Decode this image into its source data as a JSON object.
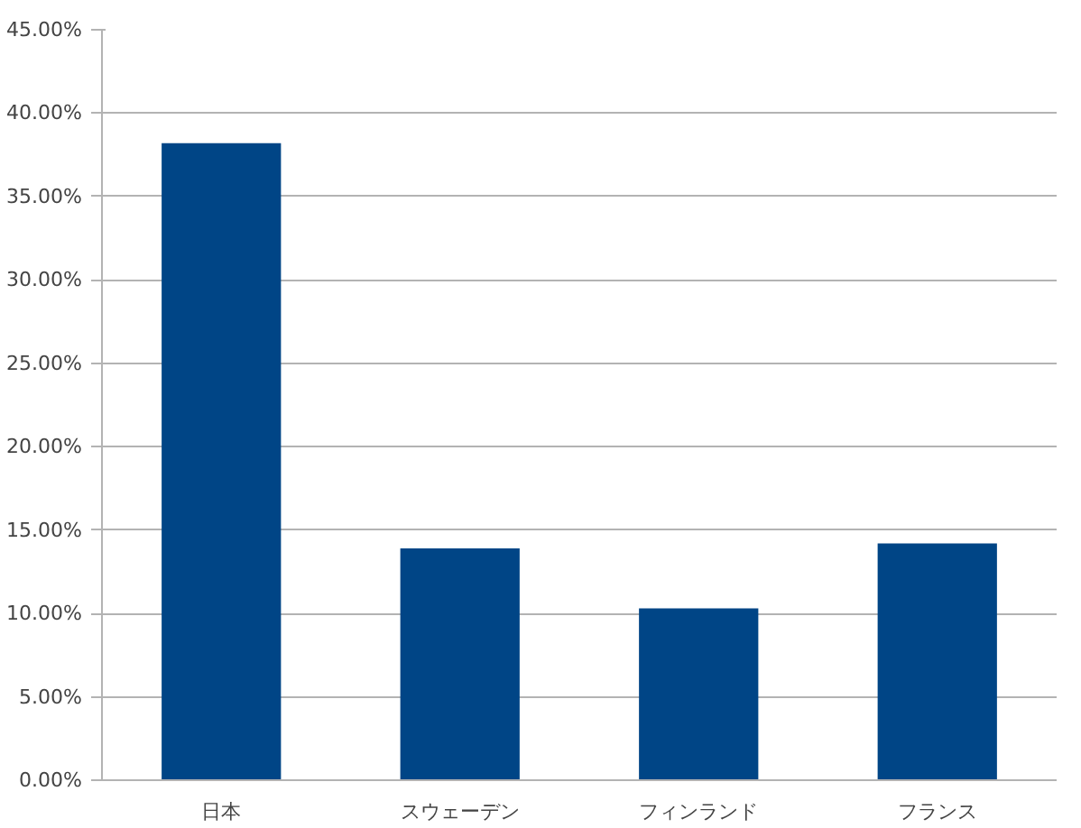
{
  "chart_data": {
    "type": "bar",
    "categories": [
      "日本",
      "スウェーデン",
      "フィンランド",
      "フランス"
    ],
    "values": [
      38.2,
      13.9,
      10.3,
      14.2
    ],
    "color": "#004586",
    "ylim": [
      0,
      45
    ],
    "yticks": [
      {
        "value": 0,
        "label": "0.00%"
      },
      {
        "value": 5,
        "label": "5.00%"
      },
      {
        "value": 10,
        "label": "10.00%"
      },
      {
        "value": 15,
        "label": "15.00%"
      },
      {
        "value": 20,
        "label": "20.00%"
      },
      {
        "value": 25,
        "label": "25.00%"
      },
      {
        "value": 30,
        "label": "30.00%"
      },
      {
        "value": 35,
        "label": "35.00%"
      },
      {
        "value": 40,
        "label": "40.00%"
      },
      {
        "value": 45,
        "label": "45.00%"
      }
    ],
    "grid": "y"
  }
}
